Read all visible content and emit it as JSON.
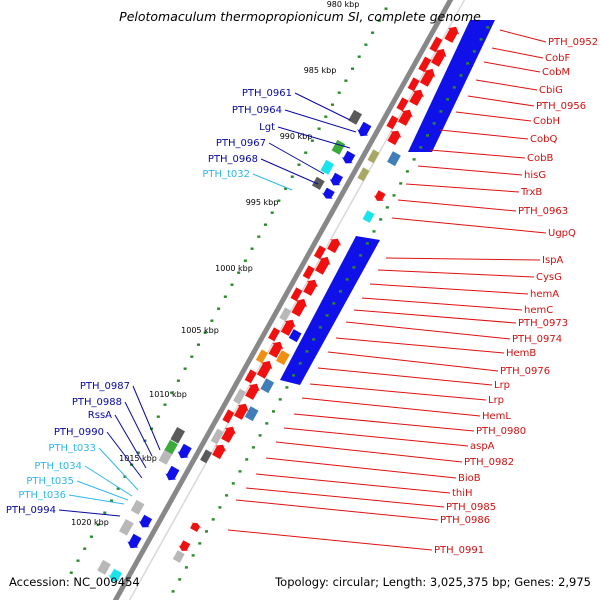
{
  "title": "Pelotomaculum thermopropionicum SI, complete genome",
  "footer": {
    "accession": "Accession: NC_009454",
    "topology": "Topology: circular; Length: 3,025,375 bp; Genes: 2,975"
  },
  "colors": {
    "red": "#f01010",
    "blue": "#1010e8",
    "cyan": "#19e4ec",
    "gray": "#b8b8b8",
    "darkgray": "#5a5a5a",
    "green": "#3aaa3a",
    "olive": "#a9a862",
    "steel": "#3f7eb8",
    "orange": "#f09010",
    "label_red": "#d01010",
    "label_blue": "#0808a0",
    "label_cyan": "#30b8e8",
    "tick_green": "#2a8a2a"
  },
  "ticks": [
    "980 kbp",
    "985 kbp",
    "990 kbp",
    "995 kbp",
    "1000 kbp",
    "1005 kbp",
    "1010 kbp",
    "1015 kbp",
    "1020 kbp"
  ],
  "right_labels": [
    "PTH_0952",
    "CobF",
    "CobM",
    "CbiG",
    "PTH_0956",
    "CobH",
    "CobQ",
    "CobB",
    "hisG",
    "TrxB",
    "PTH_0963",
    "UgpQ",
    "IspA",
    "CysG",
    "hemA",
    "hemC",
    "PTH_0973",
    "PTH_0974",
    "HemB",
    "PTH_0976",
    "Lrp",
    "Lrp",
    "HemL",
    "PTH_0980",
    "aspA",
    "PTH_0982",
    "BioB",
    "thiH",
    "PTH_0985",
    "PTH_0986",
    "PTH_0991"
  ],
  "left_labels_top": [
    "PTH_0961",
    "PTH_0964",
    "Lgt",
    "PTH_0967",
    "PTH_0968",
    "PTH_t032"
  ],
  "left_labels_bottom": [
    "PTH_0987",
    "PTH_0988",
    "RssA",
    "PTH_0990",
    "PTH_t033",
    "PTH_t034",
    "PTH_t035",
    "PTH_t036",
    "PTH_0994"
  ]
}
